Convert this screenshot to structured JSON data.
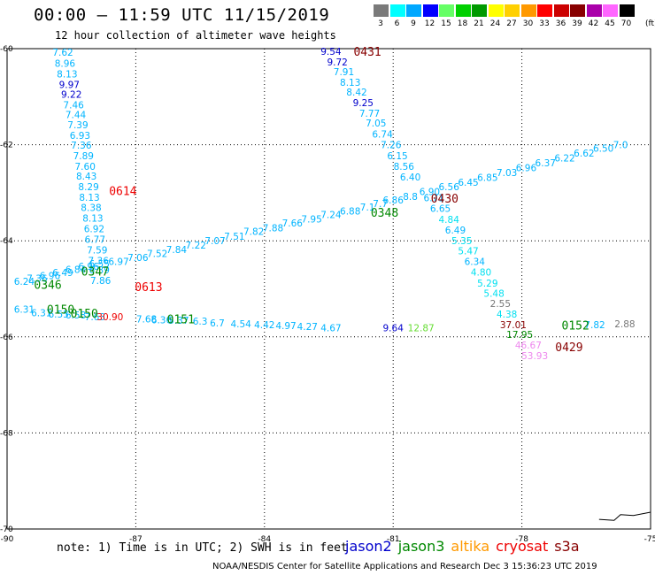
{
  "header": {
    "title": "00:00 – 11:59 UTC 11/15/2019",
    "subtitle": "12 hour collection of altimeter wave heights"
  },
  "colorbar": {
    "unit": "(ft)",
    "swatches": [
      {
        "label": "3",
        "color": "#7a7a7a"
      },
      {
        "label": "6",
        "color": "#00ffff"
      },
      {
        "label": "9",
        "color": "#00a8ff"
      },
      {
        "label": "12",
        "color": "#0000ff"
      },
      {
        "label": "15",
        "color": "#66ff66"
      },
      {
        "label": "18",
        "color": "#00d000"
      },
      {
        "label": "21",
        "color": "#009a00"
      },
      {
        "label": "24",
        "color": "#ffff00"
      },
      {
        "label": "27",
        "color": "#ffd000"
      },
      {
        "label": "30",
        "color": "#ff9900"
      },
      {
        "label": "33",
        "color": "#ff0000"
      },
      {
        "label": "36",
        "color": "#cc0000"
      },
      {
        "label": "39",
        "color": "#880000"
      },
      {
        "label": "42",
        "color": "#aa00aa"
      },
      {
        "label": "45",
        "color": "#ff66ff"
      },
      {
        "label": "70",
        "color": "#000000"
      }
    ]
  },
  "map": {
    "lon_range": [
      -90,
      -75
    ],
    "lat_range": [
      -70,
      -60
    ],
    "lon_ticks": [
      -90,
      -87,
      -84,
      -81,
      -78,
      -75
    ],
    "lon_tick_labels": [
      "-90",
      "-87",
      "-84",
      "-81",
      "-78",
      "-75"
    ],
    "lat_ticks": [
      -60,
      -62,
      -64,
      -66,
      -68,
      -70
    ],
    "lat_tick_labels": [
      "-60",
      "-62",
      "-64",
      "-66",
      "-68",
      "-70"
    ]
  },
  "colors": {
    "c1": "#00b4ff",
    "c2": "#00e0f0",
    "blue": "#0000cc",
    "green": "#008800",
    "lgreen": "#66dd33",
    "red": "#ee0000",
    "dred": "#880000",
    "grey": "#777777",
    "pink": "#ee88ee"
  },
  "chart_data": {
    "type": "scatter",
    "points": [
      {
        "lon": -88.7,
        "lat": -60.15,
        "text": "7.62",
        "c": "c1"
      },
      {
        "lon": -88.65,
        "lat": -60.38,
        "text": "8.96",
        "c": "c1"
      },
      {
        "lon": -88.6,
        "lat": -60.6,
        "text": "8.13",
        "c": "c1"
      },
      {
        "lon": -88.55,
        "lat": -60.82,
        "text": "9.97",
        "c": "blue"
      },
      {
        "lon": -88.5,
        "lat": -61.02,
        "text": "9.22",
        "c": "blue"
      },
      {
        "lon": -88.45,
        "lat": -61.24,
        "text": "7.46",
        "c": "c1"
      },
      {
        "lon": -88.4,
        "lat": -61.45,
        "text": "7.44",
        "c": "c1"
      },
      {
        "lon": -88.35,
        "lat": -61.66,
        "text": "7.39",
        "c": "c1"
      },
      {
        "lon": -88.3,
        "lat": -61.88,
        "text": "6.93",
        "c": "c1"
      },
      {
        "lon": -88.27,
        "lat": -62.08,
        "text": "7.36",
        "c": "c1"
      },
      {
        "lon": -88.22,
        "lat": -62.3,
        "text": "7.89",
        "c": "c1"
      },
      {
        "lon": -88.18,
        "lat": -62.52,
        "text": "7.60",
        "c": "c1"
      },
      {
        "lon": -88.15,
        "lat": -62.73,
        "text": "8.43",
        "c": "c1"
      },
      {
        "lon": -88.1,
        "lat": -62.95,
        "text": "8.29",
        "c": "c1"
      },
      {
        "lon": -88.08,
        "lat": -63.17,
        "text": "8.13",
        "c": "c1"
      },
      {
        "lon": -88.04,
        "lat": -63.38,
        "text": "8.38",
        "c": "c1"
      },
      {
        "lon": -88.0,
        "lat": -63.6,
        "text": "8.13",
        "c": "c1"
      },
      {
        "lon": -87.97,
        "lat": -63.82,
        "text": "6.92",
        "c": "c1"
      },
      {
        "lon": -87.95,
        "lat": -64.04,
        "text": "6.77",
        "c": "c1"
      },
      {
        "lon": -87.9,
        "lat": -64.26,
        "text": "7.59",
        "c": "c1"
      },
      {
        "lon": -87.87,
        "lat": -64.48,
        "text": "7.36",
        "c": "c1"
      },
      {
        "lon": -87.85,
        "lat": -64.68,
        "text": "6.39",
        "c": "c1"
      },
      {
        "lon": -87.82,
        "lat": -64.9,
        "text": "7.86",
        "c": "c1"
      },
      {
        "lon": -89.6,
        "lat": -64.92,
        "text": "6.24",
        "c": "c1"
      },
      {
        "lon": -89.3,
        "lat": -64.85,
        "text": "7.36",
        "c": "c1"
      },
      {
        "lon": -89.0,
        "lat": -64.8,
        "text": "6.96",
        "c": "c1"
      },
      {
        "lon": -88.7,
        "lat": -64.73,
        "text": "6.49",
        "c": "c1"
      },
      {
        "lon": -88.4,
        "lat": -64.67,
        "text": "6.84",
        "c": "c1"
      },
      {
        "lon": -88.1,
        "lat": -64.6,
        "text": "6.96",
        "c": "c1"
      },
      {
        "lon": -87.85,
        "lat": -64.55,
        "text": "6.55",
        "c": "c1"
      },
      {
        "lon": -87.4,
        "lat": -64.5,
        "text": "6.97",
        "c": "c1"
      },
      {
        "lon": -86.95,
        "lat": -64.42,
        "text": "7.06",
        "c": "c1"
      },
      {
        "lon": -86.5,
        "lat": -64.34,
        "text": "7.52",
        "c": "c1"
      },
      {
        "lon": -86.05,
        "lat": -64.25,
        "text": "7.84",
        "c": "c1"
      },
      {
        "lon": -85.6,
        "lat": -64.16,
        "text": "7.22",
        "c": "c1"
      },
      {
        "lon": -85.15,
        "lat": -64.07,
        "text": "7.07",
        "c": "c1"
      },
      {
        "lon": -84.7,
        "lat": -63.98,
        "text": "7.51",
        "c": "c1"
      },
      {
        "lon": -84.25,
        "lat": -63.88,
        "text": "7.82",
        "c": "c1"
      },
      {
        "lon": -83.8,
        "lat": -63.8,
        "text": "7.88",
        "c": "c1"
      },
      {
        "lon": -83.35,
        "lat": -63.7,
        "text": "7.66",
        "c": "c1"
      },
      {
        "lon": -82.9,
        "lat": -63.62,
        "text": "7.95",
        "c": "c1"
      },
      {
        "lon": -82.45,
        "lat": -63.53,
        "text": "7.24",
        "c": "c1"
      },
      {
        "lon": -82.0,
        "lat": -63.45,
        "text": "6.88",
        "c": "c1"
      },
      {
        "lon": -81.6,
        "lat": -63.37,
        "text": "7.1",
        "c": "c1"
      },
      {
        "lon": -81.3,
        "lat": -63.3,
        "text": "7.7",
        "c": "c1"
      },
      {
        "lon": -81.0,
        "lat": -63.22,
        "text": "6.86",
        "c": "c1"
      },
      {
        "lon": -80.6,
        "lat": -63.15,
        "text": "8.8",
        "c": "c1"
      },
      {
        "lon": -80.15,
        "lat": -63.05,
        "text": "6.90",
        "c": "c1"
      },
      {
        "lon": -79.7,
        "lat": -62.95,
        "text": "6.56",
        "c": "c1"
      },
      {
        "lon": -79.25,
        "lat": -62.85,
        "text": "6.45",
        "c": "c1"
      },
      {
        "lon": -78.8,
        "lat": -62.75,
        "text": "6.85",
        "c": "c1"
      },
      {
        "lon": -78.35,
        "lat": -62.65,
        "text": "7.03",
        "c": "c1"
      },
      {
        "lon": -77.9,
        "lat": -62.55,
        "text": "6.96",
        "c": "c1"
      },
      {
        "lon": -77.45,
        "lat": -62.45,
        "text": "6.37",
        "c": "c1"
      },
      {
        "lon": -77.0,
        "lat": -62.35,
        "text": "6.22",
        "c": "c1"
      },
      {
        "lon": -76.55,
        "lat": -62.25,
        "text": "6.62",
        "c": "c1"
      },
      {
        "lon": -76.1,
        "lat": -62.15,
        "text": "6.50",
        "c": "c1"
      },
      {
        "lon": -75.7,
        "lat": -62.07,
        "text": "7.0",
        "c": "c1"
      },
      {
        "lon": -82.45,
        "lat": -60.13,
        "text": "9.54",
        "c": "blue"
      },
      {
        "lon": -82.3,
        "lat": -60.35,
        "text": "9.72",
        "c": "blue"
      },
      {
        "lon": -82.15,
        "lat": -60.55,
        "text": "7.91",
        "c": "c1"
      },
      {
        "lon": -82.0,
        "lat": -60.77,
        "text": "8.13",
        "c": "c1"
      },
      {
        "lon": -81.85,
        "lat": -60.98,
        "text": "8.42",
        "c": "c1"
      },
      {
        "lon": -81.7,
        "lat": -61.2,
        "text": "9.25",
        "c": "blue"
      },
      {
        "lon": -81.55,
        "lat": -61.42,
        "text": "7.77",
        "c": "c1"
      },
      {
        "lon": -81.4,
        "lat": -61.62,
        "text": "7.05",
        "c": "c1"
      },
      {
        "lon": -81.25,
        "lat": -61.85,
        "text": "6.74",
        "c": "c1"
      },
      {
        "lon": -81.05,
        "lat": -62.07,
        "text": "7.26",
        "c": "c1"
      },
      {
        "lon": -80.9,
        "lat": -62.3,
        "text": "6.15",
        "c": "c1"
      },
      {
        "lon": -80.75,
        "lat": -62.52,
        "text": "8.56",
        "c": "c1"
      },
      {
        "lon": -80.6,
        "lat": -62.74,
        "text": "6.40",
        "c": "c1"
      },
      {
        "lon": -80.05,
        "lat": -63.18,
        "text": "6.71",
        "c": "c1"
      },
      {
        "lon": -79.9,
        "lat": -63.4,
        "text": "6.65",
        "c": "c1"
      },
      {
        "lon": -79.7,
        "lat": -63.63,
        "text": "4.84",
        "c": "c2"
      },
      {
        "lon": -79.55,
        "lat": -63.85,
        "text": "6.49",
        "c": "c1"
      },
      {
        "lon": -79.4,
        "lat": -64.07,
        "text": "5.35",
        "c": "c2"
      },
      {
        "lon": -79.25,
        "lat": -64.28,
        "text": "5.47",
        "c": "c2"
      },
      {
        "lon": -79.1,
        "lat": -64.5,
        "text": "6.34",
        "c": "c1"
      },
      {
        "lon": -78.95,
        "lat": -64.72,
        "text": "4.80",
        "c": "c2"
      },
      {
        "lon": -78.8,
        "lat": -64.95,
        "text": "5.29",
        "c": "c2"
      },
      {
        "lon": -78.65,
        "lat": -65.17,
        "text": "5.48",
        "c": "c2"
      },
      {
        "lon": -78.5,
        "lat": -65.38,
        "text": "2.55",
        "c": "grey"
      },
      {
        "lon": -78.35,
        "lat": -65.6,
        "text": "4.38",
        "c": "c2"
      },
      {
        "lon": -78.2,
        "lat": -65.82,
        "text": "37.01",
        "c": "dred"
      },
      {
        "lon": -78.05,
        "lat": -66.02,
        "text": "17.95",
        "c": "green"
      },
      {
        "lon": -77.85,
        "lat": -66.24,
        "text": "46.67",
        "c": "pink"
      },
      {
        "lon": -77.7,
        "lat": -66.46,
        "text": "53.93",
        "c": "pink"
      },
      {
        "lon": -76.3,
        "lat": -65.82,
        "text": "7.82",
        "c": "c1"
      },
      {
        "lon": -75.6,
        "lat": -65.8,
        "text": "2.88",
        "c": "grey"
      },
      {
        "lon": -89.6,
        "lat": -65.5,
        "text": "6.31",
        "c": "c1"
      },
      {
        "lon": -89.2,
        "lat": -65.57,
        "text": "6.31",
        "c": "c1"
      },
      {
        "lon": -88.8,
        "lat": -65.6,
        "text": "6.55",
        "c": "c1"
      },
      {
        "lon": -88.4,
        "lat": -65.62,
        "text": "6.58",
        "c": "c1"
      },
      {
        "lon": -87.95,
        "lat": -65.65,
        "text": "7.63",
        "c": "c1"
      },
      {
        "lon": -87.6,
        "lat": -65.65,
        "text": "30.90",
        "c": "red"
      },
      {
        "lon": -86.75,
        "lat": -65.7,
        "text": "7.68",
        "c": "c1"
      },
      {
        "lon": -86.4,
        "lat": -65.72,
        "text": "6.36",
        "c": "c1"
      },
      {
        "lon": -86.0,
        "lat": -65.73,
        "text": "5.37",
        "c": "c1"
      },
      {
        "lon": -85.5,
        "lat": -65.75,
        "text": "6.3",
        "c": "c1"
      },
      {
        "lon": -85.1,
        "lat": -65.78,
        "text": "6.7",
        "c": "c1"
      },
      {
        "lon": -84.55,
        "lat": -65.8,
        "text": "4.54",
        "c": "c1"
      },
      {
        "lon": -84.0,
        "lat": -65.82,
        "text": "4.42",
        "c": "c1"
      },
      {
        "lon": -83.5,
        "lat": -65.84,
        "text": "4.97",
        "c": "c1"
      },
      {
        "lon": -83.0,
        "lat": -65.86,
        "text": "4.27",
        "c": "c1"
      },
      {
        "lon": -82.45,
        "lat": -65.88,
        "text": "4.67",
        "c": "c1"
      },
      {
        "lon": -81.0,
        "lat": -65.88,
        "text": "9.64",
        "c": "blue"
      },
      {
        "lon": -80.35,
        "lat": -65.88,
        "text": "12.87",
        "c": "lgreen"
      }
    ],
    "time_labels": [
      {
        "lon": -81.6,
        "lat": -60.15,
        "text": "0431",
        "c": "dred"
      },
      {
        "lon": -87.3,
        "lat": -63.05,
        "text": "0614",
        "c": "red"
      },
      {
        "lon": -79.8,
        "lat": -63.2,
        "text": "0430",
        "c": "dred"
      },
      {
        "lon": -81.2,
        "lat": -63.5,
        "text": "0348",
        "c": "green"
      },
      {
        "lon": -87.95,
        "lat": -64.72,
        "text": "0347",
        "c": "green"
      },
      {
        "lon": -89.05,
        "lat": -65.0,
        "text": "0346",
        "c": "green"
      },
      {
        "lon": -86.7,
        "lat": -65.05,
        "text": "0613",
        "c": "red"
      },
      {
        "lon": -88.75,
        "lat": -65.52,
        "text": "0150",
        "c": "green"
      },
      {
        "lon": -88.2,
        "lat": -65.6,
        "text": "0150",
        "c": "green"
      },
      {
        "lon": -85.95,
        "lat": -65.72,
        "text": "0151",
        "c": "green"
      },
      {
        "lon": -76.75,
        "lat": -65.85,
        "text": "0152",
        "c": "green"
      },
      {
        "lon": -76.9,
        "lat": -66.3,
        "text": "0429",
        "c": "dred"
      }
    ]
  },
  "footer": {
    "note": "note: 1) Time is in UTC; 2) SWH is in feet",
    "satellites": [
      {
        "name": "jason2",
        "color": "#0000cc"
      },
      {
        "name": "jason3",
        "color": "#008800"
      },
      {
        "name": "altika",
        "color": "#ff9900"
      },
      {
        "name": "cryosat",
        "color": "#ee0000"
      },
      {
        "name": "s3a",
        "color": "#880000"
      }
    ],
    "credit": "NOAA/NESDIS Center for Satellite Applications and Research    Dec  3 15:36:23 UTC 2019"
  }
}
